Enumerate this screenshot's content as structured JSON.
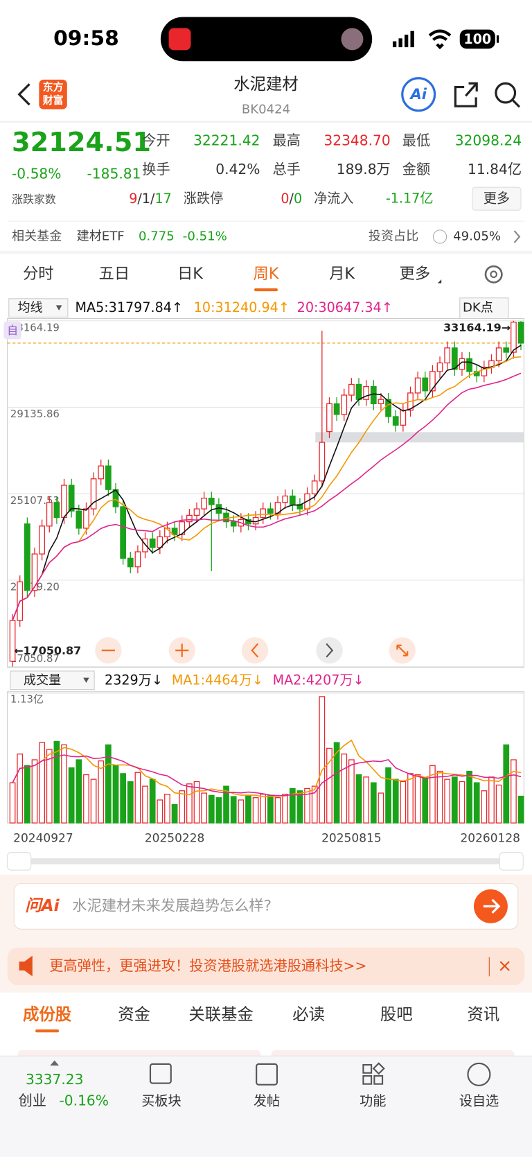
{
  "status": {
    "time": "09:58",
    "battery": "100"
  },
  "header": {
    "logo": [
      "东方",
      "财富"
    ],
    "title": "水泥建材",
    "code": "BK0424",
    "ai": "Ai"
  },
  "quote": {
    "price": "32124.51",
    "change_pct": "-0.58%",
    "change": "-185.81",
    "fields": [
      {
        "label": "今开",
        "value": "32221.42"
      },
      {
        "label": "最高",
        "value": "32348.70"
      },
      {
        "label": "最低",
        "value": "32098.24"
      },
      {
        "label": "换手",
        "value": "0.42%"
      },
      {
        "label": "总手",
        "value": "189.8万"
      },
      {
        "label": "金额",
        "value": "11.84亿"
      }
    ],
    "breadth": {
      "label": "涨跌家数",
      "up": "9",
      "sep": "/",
      "flat": "1",
      "down": "17"
    },
    "limit": {
      "label": "涨跌停",
      "up": "0",
      "down": "0"
    },
    "netflow": {
      "label": "净流入",
      "value": "-1.17亿"
    },
    "more": "更多"
  },
  "fund": {
    "label": "相关基金",
    "name": "建材ETF",
    "price": "0.775",
    "change": "-0.51%",
    "ratio_label": "投资占比",
    "ratio": "49.05%"
  },
  "tabs": {
    "items": [
      "分时",
      "五日",
      "日K",
      "周K",
      "月K",
      "更多"
    ],
    "active": 3
  },
  "chart_data": [
    {
      "type": "candlestick",
      "indicator": "均线",
      "legend": [
        "MA5:31797.84↑",
        "10:31240.94↑",
        "20:30647.34↑"
      ],
      "legend_colors": [
        "#111111",
        "#f39800",
        "#e0248c"
      ],
      "ma_periods": [
        5,
        10,
        20
      ],
      "dk": "DK点",
      "marker": "自",
      "max_label": "33164.19→",
      "min_label": "←17050.87",
      "up_color": "#e8262b",
      "down_color": "#1aa31a",
      "ylim": [
        17050.87,
        33164.19
      ],
      "yticks": [
        17050.87,
        {
          "value": 21079.2,
          "label": "21079.20"
        },
        25107.53,
        29135.86,
        33164.19
      ],
      "open": [
        17300,
        19200,
        23700,
        20600,
        22300,
        23600,
        24700,
        24000,
        25500,
        24300,
        23500,
        24400,
        25800,
        26400,
        25300,
        24500,
        22100,
        21700,
        22400,
        23000,
        22600,
        23100,
        23500,
        23200,
        23800,
        24100,
        24400,
        24900,
        24600,
        24200,
        23800,
        23600,
        23900,
        23700,
        24000,
        24400,
        24200,
        24700,
        25000,
        24600,
        24400,
        25100,
        25700,
        28000,
        29300,
        28800,
        29700,
        30200,
        29500,
        30100,
        29300,
        29500,
        28700,
        28300,
        29000,
        29800,
        30500,
        29900,
        30800,
        31200,
        31900,
        30900,
        31400,
        30800,
        30600,
        31000,
        31300,
        31900,
        31700,
        33100
      ],
      "high": [
        19500,
        21300,
        24000,
        22600,
        23900,
        25000,
        25000,
        25800,
        25800,
        24600,
        24700,
        26100,
        26700,
        26700,
        25600,
        24800,
        22400,
        22700,
        23300,
        23300,
        23400,
        23800,
        23800,
        24100,
        24400,
        24700,
        25200,
        25200,
        24900,
        24500,
        24100,
        24200,
        24200,
        24300,
        24700,
        24700,
        25000,
        25300,
        25300,
        24900,
        25400,
        26000,
        32700,
        29600,
        29600,
        30000,
        30500,
        30500,
        30400,
        30400,
        29800,
        29800,
        29000,
        29300,
        30100,
        30800,
        30800,
        31100,
        31500,
        32200,
        32200,
        31700,
        31700,
        31100,
        31300,
        31600,
        32200,
        32200,
        33164.19,
        33150
      ],
      "low": [
        17050.87,
        18900,
        20300,
        20300,
        22000,
        23300,
        23700,
        23700,
        24000,
        23200,
        23200,
        24100,
        25500,
        25000,
        24200,
        21800,
        21400,
        21400,
        22100,
        22300,
        22300,
        22800,
        22900,
        22900,
        23500,
        23800,
        24100,
        21500,
        23900,
        23500,
        23300,
        23300,
        23400,
        23400,
        23700,
        23900,
        23900,
        24400,
        24300,
        24100,
        24100,
        24800,
        25400,
        27700,
        28500,
        28500,
        29400,
        29200,
        29200,
        29000,
        29000,
        28400,
        28000,
        28000,
        28700,
        29500,
        29600,
        29600,
        30500,
        30900,
        30600,
        30600,
        30500,
        30300,
        30300,
        30700,
        31000,
        31400,
        31400,
        31800
      ],
      "close": [
        19200,
        21000,
        20600,
        22300,
        23600,
        24700,
        24000,
        25500,
        24300,
        23500,
        24400,
        25800,
        26400,
        25300,
        24500,
        22100,
        21700,
        22400,
        23000,
        22600,
        23100,
        23500,
        23200,
        23800,
        24100,
        24400,
        24900,
        24600,
        24200,
        23800,
        23600,
        23900,
        23700,
        24000,
        24400,
        24200,
        24700,
        25000,
        24600,
        24400,
        25100,
        25700,
        27500,
        29300,
        28800,
        29700,
        30200,
        29500,
        30100,
        29300,
        29500,
        28700,
        28300,
        29000,
        29800,
        30500,
        29900,
        30800,
        31200,
        31900,
        30900,
        31400,
        30800,
        30600,
        31000,
        31300,
        31900,
        31700,
        33100,
        32124.51
      ]
    },
    {
      "type": "bar",
      "indicator": "成交量",
      "legend": [
        "2329万↓",
        "MA1:4464万↓",
        "MA2:4207万↓"
      ],
      "legend_colors": [
        "#111111",
        "#f39800",
        "#e0248c"
      ],
      "ma_periods": [
        5,
        10
      ],
      "ylim": [
        0,
        11300
      ],
      "yticks": [
        {
          "value": 11300,
          "label": "1.13亿"
        }
      ],
      "categories": [
        "20240927",
        null,
        null,
        null,
        null,
        null,
        null,
        null,
        null,
        null,
        null,
        null,
        null,
        null,
        null,
        null,
        null,
        null,
        null,
        null,
        null,
        null,
        "20250228",
        null,
        null,
        null,
        null,
        null,
        null,
        null,
        null,
        null,
        null,
        null,
        null,
        null,
        null,
        null,
        null,
        null,
        null,
        null,
        null,
        null,
        null,
        null,
        "20250815",
        null,
        null,
        null,
        null,
        null,
        null,
        null,
        null,
        null,
        null,
        null,
        null,
        null,
        null,
        null,
        null,
        null,
        null,
        null,
        null,
        null,
        null,
        "20260128"
      ],
      "values": [
        3500,
        6000,
        5000,
        5500,
        7000,
        6400,
        7100,
        6800,
        4800,
        5500,
        4200,
        3800,
        5400,
        6800,
        5000,
        4300,
        3600,
        4400,
        3200,
        3800,
        2000,
        2500,
        1600,
        2800,
        3400,
        3600,
        2600,
        2400,
        2200,
        3200,
        2300,
        2000,
        2400,
        2200,
        2500,
        2400,
        2200,
        2500,
        3000,
        2800,
        3000,
        3200,
        11000,
        6500,
        7000,
        6000,
        5500,
        4200,
        4000,
        3500,
        2600,
        4800,
        3800,
        3600,
        4300,
        4200,
        3900,
        5000,
        4500,
        3800,
        4000,
        3600,
        4500,
        3500,
        2800,
        4000,
        3300,
        6800,
        5500,
        2329
      ]
    }
  ],
  "ask": {
    "brand": "问Ai",
    "placeholder": "水泥建材未来发展趋势怎么样?"
  },
  "banner": {
    "text": "更高弹性，更强进攻！投资港股就选港股通科技>>"
  },
  "sections": {
    "items": [
      "成份股",
      "资金",
      "关联基金",
      "必读",
      "股吧",
      "资讯"
    ],
    "active": 0
  },
  "nav": {
    "index_value": "3337.23",
    "index_name": "创业",
    "index_change": "-0.16%",
    "items": [
      "买板块",
      "发帖",
      "功能",
      "设自选"
    ]
  }
}
